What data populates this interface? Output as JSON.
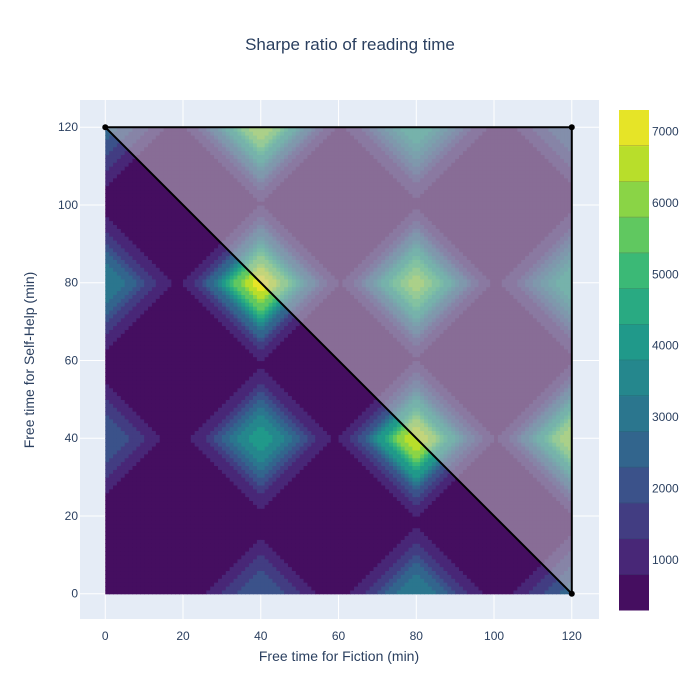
{
  "chart_data": {
    "type": "contour",
    "title": "Sharpe ratio of reading time",
    "xlabel": "Free time for Fiction (min)",
    "ylabel": "Free time for Self-Help (min)",
    "xlim": [
      -6.5,
      127
    ],
    "ylim": [
      -6.5,
      127
    ],
    "x_ticks": [
      0,
      20,
      40,
      60,
      80,
      100,
      120
    ],
    "y_ticks": [
      0,
      20,
      40,
      60,
      80,
      100,
      120
    ],
    "x_tick_labels": [
      "0",
      "20",
      "40",
      "60",
      "80",
      "100",
      "120"
    ],
    "y_tick_labels": [
      "0",
      "20",
      "40",
      "60",
      "80",
      "100",
      "120"
    ],
    "z_range": [
      300,
      7300
    ],
    "colorbar_ticks": [
      1000,
      2000,
      3000,
      4000,
      5000,
      6000,
      7000
    ],
    "colorbar_tick_labels": [
      "1000",
      "2000",
      "3000",
      "4000",
      "5000",
      "6000",
      "7000"
    ],
    "colorscale": "Viridis",
    "peaks": [
      {
        "x": 0,
        "y": 0,
        "z": 300
      },
      {
        "x": 40,
        "y": 0,
        "z": 2300
      },
      {
        "x": 80,
        "y": 0,
        "z": 3300
      },
      {
        "x": 120,
        "y": 0,
        "z": 2500
      },
      {
        "x": 0,
        "y": 40,
        "z": 2300
      },
      {
        "x": 40,
        "y": 40,
        "z": 4100
      },
      {
        "x": 80,
        "y": 40,
        "z": 6800
      },
      {
        "x": 120,
        "y": 40,
        "z": 6200
      },
      {
        "x": 0,
        "y": 80,
        "z": 3300
      },
      {
        "x": 40,
        "y": 80,
        "z": 7100
      },
      {
        "x": 80,
        "y": 80,
        "z": 6100
      },
      {
        "x": 120,
        "y": 80,
        "z": 4200
      },
      {
        "x": 0,
        "y": 120,
        "z": 2500
      },
      {
        "x": 40,
        "y": 120,
        "z": 6200
      },
      {
        "x": 80,
        "y": 120,
        "z": 4200
      },
      {
        "x": 120,
        "y": 120,
        "z": 2300
      }
    ],
    "constraint_region": {
      "shape": "triangle",
      "vertices": [
        [
          0,
          120
        ],
        [
          120,
          120
        ],
        [
          120,
          0
        ]
      ],
      "fill_color": "rgba(204,204,204,0.5)",
      "line_color": "#000000"
    },
    "grid": true,
    "plot_background": "#e5ecf6"
  }
}
